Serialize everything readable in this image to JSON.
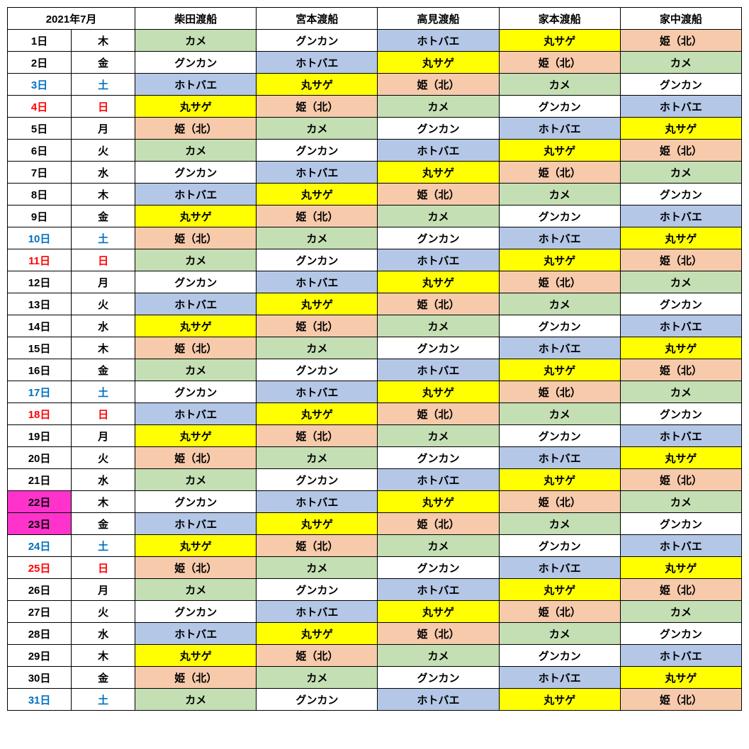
{
  "header": {
    "month_label": "2021年7月",
    "ferries": [
      "柴田渡船",
      "宮本渡船",
      "高見渡船",
      "家本渡船",
      "家中渡船"
    ]
  },
  "colors": {
    "カメ": "#c4dfb3",
    "グンカン": "#ffffff",
    "ホトバエ": "#b4c7e7",
    "丸サゲ": "#ffff00",
    "姫（北）": "#f7caac",
    "date_default_bg": "#ffffff",
    "date_holiday_bg": "#ff33cc",
    "text_default": "#000000",
    "text_sat": "#0070c0",
    "text_sun": "#ff0000"
  },
  "rows": [
    {
      "date": "1日",
      "dow": "木",
      "type": "weekday",
      "cells": [
        "カメ",
        "グンカン",
        "ホトバエ",
        "丸サゲ",
        "姫（北）"
      ]
    },
    {
      "date": "2日",
      "dow": "金",
      "type": "weekday",
      "cells": [
        "グンカン",
        "ホトバエ",
        "丸サゲ",
        "姫（北）",
        "カメ"
      ]
    },
    {
      "date": "3日",
      "dow": "土",
      "type": "sat",
      "cells": [
        "ホトバエ",
        "丸サゲ",
        "姫（北）",
        "カメ",
        "グンカン"
      ]
    },
    {
      "date": "4日",
      "dow": "日",
      "type": "sun",
      "cells": [
        "丸サゲ",
        "姫（北）",
        "カメ",
        "グンカン",
        "ホトバエ"
      ]
    },
    {
      "date": "5日",
      "dow": "月",
      "type": "weekday",
      "cells": [
        "姫（北）",
        "カメ",
        "グンカン",
        "ホトバエ",
        "丸サゲ"
      ]
    },
    {
      "date": "6日",
      "dow": "火",
      "type": "weekday",
      "cells": [
        "カメ",
        "グンカン",
        "ホトバエ",
        "丸サゲ",
        "姫（北）"
      ]
    },
    {
      "date": "7日",
      "dow": "水",
      "type": "weekday",
      "cells": [
        "グンカン",
        "ホトバエ",
        "丸サゲ",
        "姫（北）",
        "カメ"
      ]
    },
    {
      "date": "8日",
      "dow": "木",
      "type": "weekday",
      "cells": [
        "ホトバエ",
        "丸サゲ",
        "姫（北）",
        "カメ",
        "グンカン"
      ]
    },
    {
      "date": "9日",
      "dow": "金",
      "type": "weekday",
      "cells": [
        "丸サゲ",
        "姫（北）",
        "カメ",
        "グンカン",
        "ホトバエ"
      ]
    },
    {
      "date": "10日",
      "dow": "土",
      "type": "sat",
      "cells": [
        "姫（北）",
        "カメ",
        "グンカン",
        "ホトバエ",
        "丸サゲ"
      ]
    },
    {
      "date": "11日",
      "dow": "日",
      "type": "sun",
      "cells": [
        "カメ",
        "グンカン",
        "ホトバエ",
        "丸サゲ",
        "姫（北）"
      ]
    },
    {
      "date": "12日",
      "dow": "月",
      "type": "weekday",
      "cells": [
        "グンカン",
        "ホトバエ",
        "丸サゲ",
        "姫（北）",
        "カメ"
      ]
    },
    {
      "date": "13日",
      "dow": "火",
      "type": "weekday",
      "cells": [
        "ホトバエ",
        "丸サゲ",
        "姫（北）",
        "カメ",
        "グンカン"
      ]
    },
    {
      "date": "14日",
      "dow": "水",
      "type": "weekday",
      "cells": [
        "丸サゲ",
        "姫（北）",
        "カメ",
        "グンカン",
        "ホトバエ"
      ]
    },
    {
      "date": "15日",
      "dow": "木",
      "type": "weekday",
      "cells": [
        "姫（北）",
        "カメ",
        "グンカン",
        "ホトバエ",
        "丸サゲ"
      ]
    },
    {
      "date": "16日",
      "dow": "金",
      "type": "weekday",
      "cells": [
        "カメ",
        "グンカン",
        "ホトバエ",
        "丸サゲ",
        "姫（北）"
      ]
    },
    {
      "date": "17日",
      "dow": "土",
      "type": "sat",
      "cells": [
        "グンカン",
        "ホトバエ",
        "丸サゲ",
        "姫（北）",
        "カメ"
      ]
    },
    {
      "date": "18日",
      "dow": "日",
      "type": "sun",
      "cells": [
        "ホトバエ",
        "丸サゲ",
        "姫（北）",
        "カメ",
        "グンカン"
      ]
    },
    {
      "date": "19日",
      "dow": "月",
      "type": "weekday",
      "cells": [
        "丸サゲ",
        "姫（北）",
        "カメ",
        "グンカン",
        "ホトバエ"
      ]
    },
    {
      "date": "20日",
      "dow": "火",
      "type": "weekday",
      "cells": [
        "姫（北）",
        "カメ",
        "グンカン",
        "ホトバエ",
        "丸サゲ"
      ]
    },
    {
      "date": "21日",
      "dow": "水",
      "type": "weekday",
      "cells": [
        "カメ",
        "グンカン",
        "ホトバエ",
        "丸サゲ",
        "姫（北）"
      ]
    },
    {
      "date": "22日",
      "dow": "木",
      "type": "weekday",
      "date_bg": "holiday",
      "cells": [
        "グンカン",
        "ホトバエ",
        "丸サゲ",
        "姫（北）",
        "カメ"
      ]
    },
    {
      "date": "23日",
      "dow": "金",
      "type": "weekday",
      "date_bg": "holiday",
      "cells": [
        "ホトバエ",
        "丸サゲ",
        "姫（北）",
        "カメ",
        "グンカン"
      ]
    },
    {
      "date": "24日",
      "dow": "土",
      "type": "sat",
      "cells": [
        "丸サゲ",
        "姫（北）",
        "カメ",
        "グンカン",
        "ホトバエ"
      ]
    },
    {
      "date": "25日",
      "dow": "日",
      "type": "sun",
      "cells": [
        "姫（北）",
        "カメ",
        "グンカン",
        "ホトバエ",
        "丸サゲ"
      ]
    },
    {
      "date": "26日",
      "dow": "月",
      "type": "weekday",
      "cells": [
        "カメ",
        "グンカン",
        "ホトバエ",
        "丸サゲ",
        "姫（北）"
      ]
    },
    {
      "date": "27日",
      "dow": "火",
      "type": "weekday",
      "cells": [
        "グンカン",
        "ホトバエ",
        "丸サゲ",
        "姫（北）",
        "カメ"
      ]
    },
    {
      "date": "28日",
      "dow": "水",
      "type": "weekday",
      "cells": [
        "ホトバエ",
        "丸サゲ",
        "姫（北）",
        "カメ",
        "グンカン"
      ]
    },
    {
      "date": "29日",
      "dow": "木",
      "type": "weekday",
      "cells": [
        "丸サゲ",
        "姫（北）",
        "カメ",
        "グンカン",
        "ホトバエ"
      ]
    },
    {
      "date": "30日",
      "dow": "金",
      "type": "weekday",
      "cells": [
        "姫（北）",
        "カメ",
        "グンカン",
        "ホトバエ",
        "丸サゲ"
      ]
    },
    {
      "date": "31日",
      "dow": "土",
      "type": "sat",
      "cells": [
        "カメ",
        "グンカン",
        "ホトバエ",
        "丸サゲ",
        "姫（北）"
      ]
    }
  ]
}
